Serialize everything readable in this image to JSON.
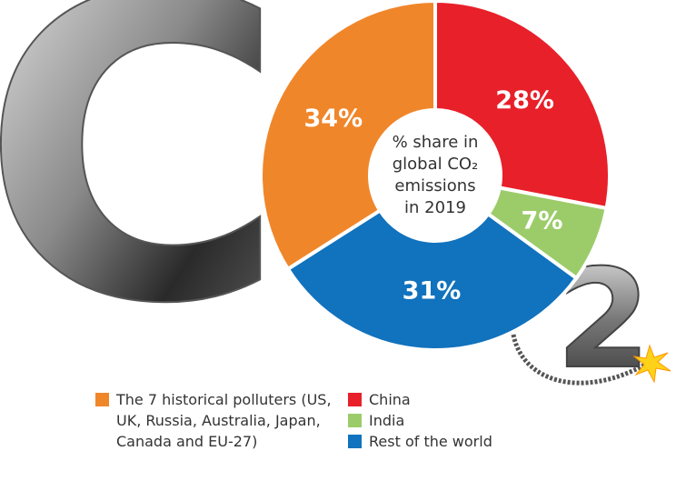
{
  "logo": {
    "letter": "C",
    "subscript": "2"
  },
  "chart_data": {
    "type": "pie",
    "center_text": [
      "% share in",
      "global CO₂",
      "emissions",
      "in 2019"
    ],
    "categories": [
      "The 7 historical polluters (US, UK, Russia, Australia, Japan, Canada and EU-27)",
      "China",
      "India",
      "Rest of the world"
    ],
    "values": [
      34,
      28,
      7,
      31
    ],
    "value_labels": [
      "34%",
      "28%",
      "7%",
      "31%"
    ],
    "colors": [
      "#f0862a",
      "#e8202a",
      "#9ccc6a",
      "#1172bd"
    ]
  }
}
